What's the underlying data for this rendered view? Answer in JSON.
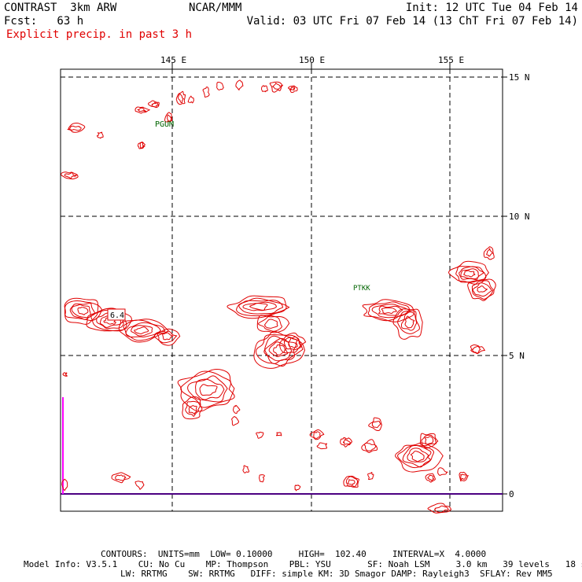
{
  "header": {
    "left_line1": "CONTRAST  3km ARW",
    "center_line1": "NCAR/MMM",
    "right_line1": "Init: 12 UTC Tue 04 Feb 14",
    "left_line2": "Fcst:   63 h",
    "right_line2": "Valid: 03 UTC Fri 07 Feb 14 (13 ChT Fri 07 Feb 14)",
    "field_label": "Explicit precip. in past 3 h"
  },
  "axes": {
    "lon_labels": [
      "145 E",
      "150 E",
      "155 E"
    ],
    "lat_labels": [
      "15 N",
      "10 N",
      "5 N",
      "0"
    ]
  },
  "stations": [
    {
      "label": "PGUM"
    },
    {
      "label": "PTKK"
    }
  ],
  "highlight_label": "6.4",
  "footer": {
    "contours": "CONTOURS:  UNITS=mm  LOW= 0.10000     HIGH=  102.40     INTERVAL=X  4.0000",
    "model_info_1": "Model Info: V3.5.1    CU: No Cu    MP: Thompson    PBL: YSU       SF: Noah LSM     3.0 km   39 levels   18 sec",
    "model_info_2": "LW: RRTMG    SW: RRTMG   DIFF: simple KM: 3D Smagor DAMP: Rayleigh3  SFLAY: Rev MM5"
  },
  "colors": {
    "contour": "#e00000",
    "grid": "#000000",
    "station": "#006400",
    "equator": "#4b0082",
    "boundary": "#ff00ff"
  }
}
